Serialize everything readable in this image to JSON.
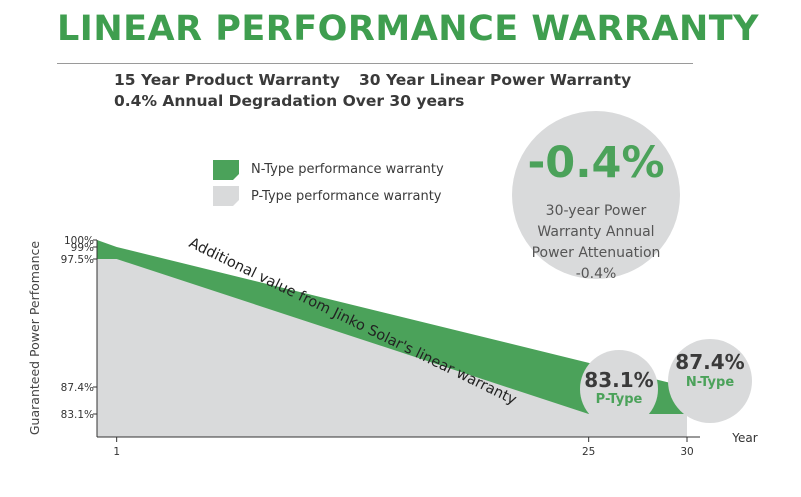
{
  "header": {
    "title": "LINEAR PERFORMANCE WARRANTY",
    "line1_left": "15 Year Product Warranty",
    "line1_right": "30 Year Linear Power Warranty",
    "line2": "0.4% Annual Degradation Over 30 years"
  },
  "legend": {
    "ntype": "N-Type performance warranty",
    "ptype": "P-Type performance warranty"
  },
  "bubble_main": {
    "value": "-0.4%",
    "line1": "30-year Power",
    "line2": "Warranty Annual",
    "line3": "Power Attenuation",
    "line4": "-0.4%"
  },
  "bubble_ptype": {
    "value": "83.1%",
    "label": "P-Type"
  },
  "bubble_ntype": {
    "value": "87.4%",
    "label": "N-Type"
  },
  "colors": {
    "green": "#4ba25a",
    "dark_green": "#3f9e4f",
    "grey": "#d9dadb",
    "text": "#3a3a3a"
  },
  "chart_data": {
    "type": "area",
    "title": "",
    "ylabel": "Guaranteed Power Perfomance",
    "xlabel": "Year",
    "annotation": "Additional value from Jinko Solar's linear warranty",
    "x_ticks": [
      "1",
      "25",
      "30"
    ],
    "y_ticks": [
      "100%",
      "99%",
      "97.5%",
      "87.4%",
      "83.1%"
    ],
    "series": [
      {
        "name": "N-Type performance warranty",
        "x": [
          0,
          1,
          30
        ],
        "y": [
          100,
          99,
          87.4
        ]
      },
      {
        "name": "P-Type performance warranty",
        "x": [
          0,
          1,
          25,
          30
        ],
        "y": [
          97.5,
          97.5,
          83.1,
          83.1
        ]
      }
    ]
  }
}
